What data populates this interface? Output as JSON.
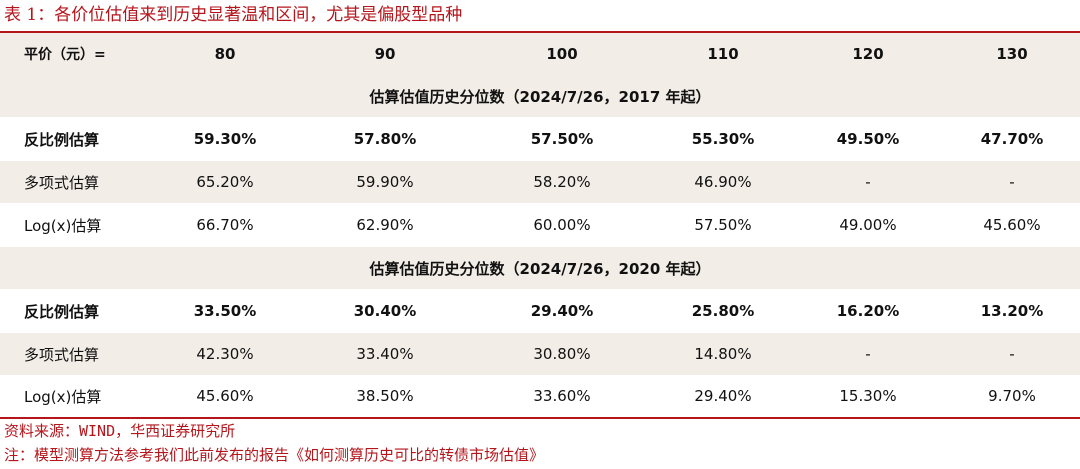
{
  "title": "表 1：各价位估值来到历史显著温和区间，尤其是偏股型品种",
  "header": [
    "平价（元）=",
    "80",
    "90",
    "100",
    "110",
    "120",
    "130"
  ],
  "section1": {
    "label": "估算估值历史分位数（2024/7/26，2017 年起）",
    "rows": [
      [
        "反比例估算",
        "59.30%",
        "57.80%",
        "57.50%",
        "55.30%",
        "49.50%",
        "47.70%"
      ],
      [
        "多项式估算",
        "65.20%",
        "59.90%",
        "58.20%",
        "46.90%",
        "-",
        "-"
      ],
      [
        "Log(x)估算",
        "66.70%",
        "62.90%",
        "60.00%",
        "57.50%",
        "49.00%",
        "45.60%"
      ]
    ]
  },
  "section2": {
    "label": "估算估值历史分位数（2024/7/26，2020 年起）",
    "rows": [
      [
        "反比例估算",
        "33.50%",
        "30.40%",
        "29.40%",
        "25.80%",
        "16.20%",
        "13.20%"
      ],
      [
        "多项式估算",
        "42.30%",
        "33.40%",
        "30.80%",
        "14.80%",
        "-",
        "-"
      ],
      [
        "Log(x)估算",
        "45.60%",
        "38.50%",
        "33.60%",
        "29.40%",
        "15.30%",
        "9.70%"
      ]
    ]
  },
  "source": "资料来源：WIND，华西证券研究所",
  "note": "注：模型测算方法参考我们此前发布的报告《如何测算历史可比的转债市场估值》",
  "colors": {
    "accent": "#b5161c",
    "band": "#f2ede7"
  }
}
